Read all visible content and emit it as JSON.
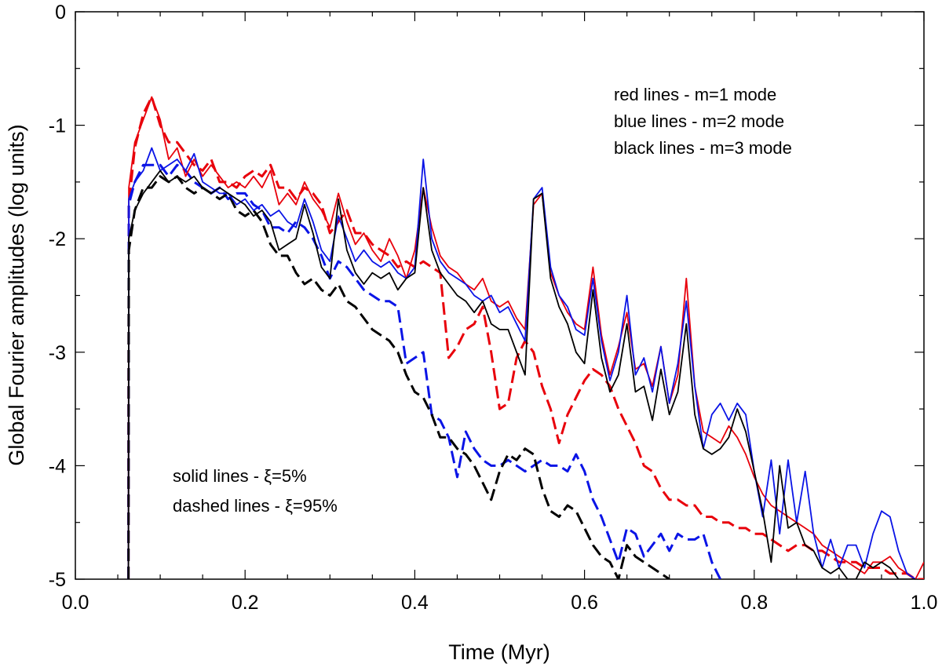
{
  "chart_data": {
    "type": "line",
    "title": "",
    "xlabel": "Time (Myr)",
    "ylabel": "Global Fourier amplitudes (log units)",
    "xlim": [
      0.0,
      1.0
    ],
    "ylim": [
      -5,
      0
    ],
    "xticks": [
      "0.0",
      "0.2",
      "0.4",
      "0.6",
      "0.8",
      "1.0"
    ],
    "yticks": [
      "0",
      "-1",
      "-2",
      "-3",
      "-4",
      "-5"
    ],
    "xtick_values": [
      0.0,
      0.2,
      0.4,
      0.6,
      0.8,
      1.0
    ],
    "ytick_values": [
      0,
      -1,
      -2,
      -3,
      -4,
      -5
    ],
    "grid": false,
    "annotations": {
      "legend_colors": [
        "red lines - m=1 mode",
        "blue lines - m=2 mode",
        "black lines - m=3 mode"
      ],
      "legend_styles": [
        "solid lines - ξ=5%",
        "dashed lines - ξ=95%"
      ]
    },
    "series": [
      {
        "name": "m=1 ξ=5%",
        "color": "#e8000b",
        "dashed": false,
        "x": [
          0.0625,
          0.063,
          0.07,
          0.08,
          0.09,
          0.1,
          0.11,
          0.12,
          0.13,
          0.14,
          0.15,
          0.16,
          0.17,
          0.18,
          0.19,
          0.2,
          0.21,
          0.22,
          0.23,
          0.24,
          0.25,
          0.26,
          0.27,
          0.28,
          0.29,
          0.3,
          0.31,
          0.32,
          0.33,
          0.34,
          0.35,
          0.36,
          0.37,
          0.38,
          0.39,
          0.4,
          0.41,
          0.42,
          0.43,
          0.44,
          0.45,
          0.46,
          0.47,
          0.48,
          0.49,
          0.5,
          0.51,
          0.52,
          0.53,
          0.54,
          0.55,
          0.56,
          0.57,
          0.58,
          0.59,
          0.6,
          0.61,
          0.62,
          0.63,
          0.64,
          0.65,
          0.66,
          0.67,
          0.68,
          0.69,
          0.7,
          0.71,
          0.72,
          0.73,
          0.74,
          0.75,
          0.76,
          0.77,
          0.78,
          0.79,
          0.8,
          0.81,
          0.82,
          0.83,
          0.84,
          0.85,
          0.86,
          0.87,
          0.88,
          0.89,
          0.9,
          0.91,
          0.92,
          0.93,
          0.94,
          0.95,
          0.96,
          0.97,
          0.98,
          0.99,
          1.0
        ],
        "y": [
          -5.0,
          -1.55,
          -1.15,
          -0.95,
          -0.75,
          -0.95,
          -1.3,
          -1.2,
          -1.45,
          -1.3,
          -1.45,
          -1.35,
          -1.45,
          -1.55,
          -1.5,
          -1.55,
          -1.45,
          -1.55,
          -1.4,
          -1.7,
          -1.6,
          -1.7,
          -1.5,
          -1.65,
          -1.75,
          -1.9,
          -1.6,
          -1.85,
          -2.05,
          -1.95,
          -2.1,
          -2.2,
          -2.0,
          -2.15,
          -2.35,
          -2.1,
          -1.55,
          -1.9,
          -2.15,
          -2.25,
          -2.3,
          -2.4,
          -2.45,
          -2.35,
          -2.55,
          -2.6,
          -2.55,
          -2.7,
          -2.8,
          -1.7,
          -1.6,
          -2.3,
          -2.5,
          -2.65,
          -2.75,
          -2.8,
          -2.25,
          -2.85,
          -3.2,
          -2.95,
          -2.65,
          -3.15,
          -3.1,
          -3.3,
          -2.95,
          -3.45,
          -3.2,
          -2.35,
          -3.3,
          -3.7,
          -3.75,
          -3.8,
          -3.65,
          -3.75,
          -3.9,
          -4.1,
          -4.25,
          -4.35,
          -4.4,
          -4.45,
          -4.5,
          -4.55,
          -4.6,
          -4.7,
          -4.75,
          -4.8,
          -4.85,
          -4.9,
          -4.95,
          -4.85,
          -4.85,
          -4.8,
          -4.9,
          -4.95,
          -5.0,
          -4.85
        ]
      },
      {
        "name": "m=2 ξ=5%",
        "color": "#0a14e6",
        "dashed": false,
        "x": [
          0.0625,
          0.063,
          0.07,
          0.08,
          0.09,
          0.1,
          0.11,
          0.12,
          0.13,
          0.14,
          0.15,
          0.16,
          0.17,
          0.18,
          0.19,
          0.2,
          0.21,
          0.22,
          0.23,
          0.24,
          0.25,
          0.26,
          0.27,
          0.28,
          0.29,
          0.3,
          0.31,
          0.32,
          0.33,
          0.34,
          0.35,
          0.36,
          0.37,
          0.38,
          0.39,
          0.4,
          0.41,
          0.42,
          0.43,
          0.44,
          0.45,
          0.46,
          0.47,
          0.48,
          0.49,
          0.5,
          0.51,
          0.52,
          0.53,
          0.54,
          0.55,
          0.56,
          0.57,
          0.58,
          0.59,
          0.6,
          0.61,
          0.62,
          0.63,
          0.64,
          0.65,
          0.66,
          0.67,
          0.68,
          0.69,
          0.7,
          0.71,
          0.72,
          0.73,
          0.74,
          0.75,
          0.76,
          0.77,
          0.78,
          0.79,
          0.8,
          0.81,
          0.82,
          0.83,
          0.84,
          0.85,
          0.86,
          0.87,
          0.88,
          0.89,
          0.9,
          0.91,
          0.92,
          0.93,
          0.94,
          0.95,
          0.96,
          0.97,
          0.98,
          0.99
        ],
        "y": [
          -5.0,
          -1.65,
          -1.5,
          -1.4,
          -1.2,
          -1.4,
          -1.35,
          -1.3,
          -1.4,
          -1.25,
          -1.5,
          -1.55,
          -1.6,
          -1.6,
          -1.7,
          -1.65,
          -1.75,
          -1.7,
          -1.8,
          -1.75,
          -1.85,
          -1.9,
          -1.65,
          -1.85,
          -2.1,
          -2.2,
          -1.8,
          -2.0,
          -2.2,
          -2.1,
          -2.2,
          -2.25,
          -2.2,
          -2.3,
          -2.35,
          -2.25,
          -1.3,
          -2.0,
          -2.2,
          -2.3,
          -2.35,
          -2.4,
          -2.5,
          -2.55,
          -2.5,
          -2.65,
          -2.6,
          -2.75,
          -2.9,
          -1.65,
          -1.55,
          -2.25,
          -2.5,
          -2.6,
          -2.8,
          -2.85,
          -2.35,
          -2.9,
          -3.25,
          -3.0,
          -2.5,
          -3.2,
          -3.05,
          -3.35,
          -2.95,
          -3.45,
          -3.1,
          -2.55,
          -3.3,
          -3.85,
          -3.55,
          -3.45,
          -3.6,
          -3.45,
          -3.55,
          -4.05,
          -4.45,
          -3.95,
          -4.6,
          -3.95,
          -4.5,
          -4.05,
          -4.6,
          -4.9,
          -4.65,
          -4.9,
          -4.7,
          -4.7,
          -4.9,
          -4.6,
          -4.4,
          -4.45,
          -4.75,
          -4.95,
          -5.0
        ]
      },
      {
        "name": "m=3 ξ=5%",
        "color": "#000000",
        "dashed": false,
        "x": [
          0.0625,
          0.063,
          0.07,
          0.08,
          0.09,
          0.1,
          0.11,
          0.12,
          0.13,
          0.14,
          0.15,
          0.16,
          0.17,
          0.18,
          0.19,
          0.2,
          0.21,
          0.22,
          0.23,
          0.24,
          0.25,
          0.26,
          0.27,
          0.28,
          0.29,
          0.3,
          0.31,
          0.32,
          0.33,
          0.34,
          0.35,
          0.36,
          0.37,
          0.38,
          0.39,
          0.4,
          0.41,
          0.42,
          0.43,
          0.44,
          0.45,
          0.46,
          0.47,
          0.48,
          0.49,
          0.5,
          0.51,
          0.52,
          0.53,
          0.54,
          0.55,
          0.56,
          0.57,
          0.58,
          0.59,
          0.6,
          0.61,
          0.62,
          0.63,
          0.64,
          0.65,
          0.66,
          0.67,
          0.68,
          0.69,
          0.7,
          0.71,
          0.72,
          0.73,
          0.74,
          0.75,
          0.76,
          0.77,
          0.78,
          0.79,
          0.8,
          0.81,
          0.82,
          0.83,
          0.84,
          0.85,
          0.86,
          0.87,
          0.88,
          0.89,
          0.9,
          0.91,
          0.92,
          0.93,
          0.94,
          0.95,
          0.96,
          0.97,
          0.98,
          0.99
        ],
        "y": [
          -5.0,
          -2.0,
          -1.75,
          -1.6,
          -1.5,
          -1.4,
          -1.5,
          -1.45,
          -1.5,
          -1.45,
          -1.55,
          -1.6,
          -1.55,
          -1.6,
          -1.65,
          -1.7,
          -1.8,
          -1.75,
          -1.85,
          -2.1,
          -2.05,
          -2.0,
          -1.7,
          -1.95,
          -2.25,
          -2.35,
          -1.65,
          -2.1,
          -2.3,
          -2.4,
          -2.3,
          -2.35,
          -2.3,
          -2.45,
          -2.35,
          -2.3,
          -1.55,
          -2.1,
          -2.3,
          -2.4,
          -2.5,
          -2.55,
          -2.65,
          -2.55,
          -2.75,
          -2.8,
          -2.8,
          -3.0,
          -3.2,
          -1.65,
          -1.6,
          -2.35,
          -2.6,
          -2.75,
          -3.0,
          -3.1,
          -2.45,
          -3.05,
          -3.35,
          -3.2,
          -2.75,
          -3.35,
          -3.3,
          -3.6,
          -3.15,
          -3.55,
          -3.35,
          -2.75,
          -3.55,
          -3.85,
          -3.9,
          -3.85,
          -3.75,
          -3.5,
          -3.7,
          -4.05,
          -4.4,
          -4.85,
          -4.0,
          -4.55,
          -4.5,
          -4.7,
          -4.75,
          -4.9,
          -4.95,
          -4.9,
          -5.0,
          -5.0,
          -4.85,
          -4.9,
          -4.85,
          -4.9,
          -5.0,
          -5.0,
          -5.0
        ]
      },
      {
        "name": "m=1 ξ=95%",
        "color": "#e8000b",
        "dashed": true,
        "x": [
          0.0625,
          0.063,
          0.07,
          0.08,
          0.09,
          0.1,
          0.11,
          0.12,
          0.13,
          0.14,
          0.15,
          0.16,
          0.17,
          0.18,
          0.19,
          0.2,
          0.21,
          0.22,
          0.23,
          0.24,
          0.25,
          0.26,
          0.27,
          0.28,
          0.29,
          0.3,
          0.31,
          0.32,
          0.33,
          0.34,
          0.35,
          0.36,
          0.37,
          0.38,
          0.39,
          0.4,
          0.41,
          0.42,
          0.43,
          0.44,
          0.45,
          0.46,
          0.47,
          0.48,
          0.49,
          0.5,
          0.51,
          0.52,
          0.53,
          0.54,
          0.55,
          0.56,
          0.57,
          0.58,
          0.59,
          0.6,
          0.61,
          0.62,
          0.63,
          0.64,
          0.65,
          0.66,
          0.67,
          0.68,
          0.69,
          0.7,
          0.71,
          0.72,
          0.73,
          0.74,
          0.75,
          0.76,
          0.77,
          0.78,
          0.79,
          0.8,
          0.81,
          0.82,
          0.83,
          0.84,
          0.85,
          0.86,
          0.87,
          0.88,
          0.89,
          0.9,
          0.91,
          0.92,
          0.93,
          0.94,
          0.95,
          0.96,
          0.97,
          0.98,
          0.99,
          1.0
        ],
        "y": [
          -5.0,
          -1.7,
          -1.2,
          -0.9,
          -0.75,
          -1.0,
          -1.15,
          -1.15,
          -1.25,
          -1.35,
          -1.4,
          -1.3,
          -1.5,
          -1.5,
          -1.55,
          -1.45,
          -1.4,
          -1.45,
          -1.35,
          -1.55,
          -1.55,
          -1.65,
          -1.55,
          -1.6,
          -1.7,
          -1.95,
          -1.85,
          -1.75,
          -1.95,
          -1.95,
          -2.05,
          -2.1,
          -2.15,
          -2.25,
          -2.2,
          -2.25,
          -2.2,
          -2.25,
          -2.3,
          -3.05,
          -2.95,
          -2.8,
          -2.75,
          -2.6,
          -3.0,
          -3.5,
          -3.45,
          -3.05,
          -2.9,
          -3.0,
          -3.3,
          -3.5,
          -3.8,
          -3.55,
          -3.4,
          -3.25,
          -3.15,
          -3.2,
          -3.3,
          -3.5,
          -3.65,
          -3.8,
          -4.0,
          -4.05,
          -4.2,
          -4.3,
          -4.3,
          -4.35,
          -4.35,
          -4.45,
          -4.45,
          -4.5,
          -4.5,
          -4.55,
          -4.55,
          -4.6,
          -4.6,
          -4.65,
          -4.7,
          -4.75,
          -4.7,
          -4.7,
          -4.75,
          -4.75,
          -4.8,
          -4.85,
          -4.85,
          -4.85,
          -4.9,
          -4.9,
          -4.9,
          -4.95,
          -4.95,
          -4.95,
          -5.0,
          -5.0
        ]
      },
      {
        "name": "m=2 ξ=95%",
        "color": "#0a14e6",
        "dashed": true,
        "x": [
          0.0625,
          0.063,
          0.07,
          0.08,
          0.09,
          0.1,
          0.11,
          0.12,
          0.13,
          0.14,
          0.15,
          0.16,
          0.17,
          0.18,
          0.19,
          0.2,
          0.21,
          0.22,
          0.23,
          0.24,
          0.25,
          0.26,
          0.27,
          0.28,
          0.29,
          0.3,
          0.31,
          0.32,
          0.33,
          0.34,
          0.35,
          0.36,
          0.37,
          0.38,
          0.39,
          0.4,
          0.41,
          0.42,
          0.43,
          0.44,
          0.45,
          0.46,
          0.47,
          0.48,
          0.49,
          0.5,
          0.51,
          0.52,
          0.53,
          0.54,
          0.55,
          0.56,
          0.57,
          0.58,
          0.59,
          0.6,
          0.61,
          0.62,
          0.63,
          0.64,
          0.65,
          0.66,
          0.67,
          0.68,
          0.69,
          0.7,
          0.71,
          0.72,
          0.73,
          0.74,
          0.75,
          0.76
        ],
        "y": [
          -5.0,
          -1.7,
          -1.5,
          -1.35,
          -1.35,
          -1.35,
          -1.45,
          -1.35,
          -1.4,
          -1.5,
          -1.55,
          -1.6,
          -1.55,
          -1.65,
          -1.6,
          -1.6,
          -1.7,
          -1.75,
          -1.9,
          -1.9,
          -1.95,
          -1.85,
          -1.9,
          -2.0,
          -2.15,
          -2.35,
          -2.2,
          -2.25,
          -2.35,
          -2.45,
          -2.5,
          -2.55,
          -2.55,
          -2.6,
          -3.1,
          -3.05,
          -3.0,
          -3.55,
          -3.6,
          -3.75,
          -4.1,
          -3.7,
          -3.85,
          -3.95,
          -4.0,
          -4.0,
          -3.95,
          -4.0,
          -4.05,
          -4.0,
          -3.95,
          -4.0,
          -4.0,
          -4.05,
          -3.9,
          -4.05,
          -4.3,
          -4.45,
          -4.65,
          -4.85,
          -4.55,
          -4.6,
          -4.8,
          -4.7,
          -4.6,
          -4.75,
          -4.6,
          -4.65,
          -4.65,
          -4.6,
          -4.85,
          -5.0
        ]
      },
      {
        "name": "m=3 ξ=95%",
        "color": "#000000",
        "dashed": true,
        "x": [
          0.0625,
          0.063,
          0.07,
          0.08,
          0.09,
          0.1,
          0.11,
          0.12,
          0.13,
          0.14,
          0.15,
          0.16,
          0.17,
          0.18,
          0.19,
          0.2,
          0.21,
          0.22,
          0.23,
          0.24,
          0.25,
          0.26,
          0.27,
          0.28,
          0.29,
          0.3,
          0.31,
          0.32,
          0.33,
          0.34,
          0.35,
          0.36,
          0.37,
          0.38,
          0.39,
          0.4,
          0.41,
          0.42,
          0.43,
          0.44,
          0.45,
          0.46,
          0.47,
          0.48,
          0.49,
          0.5,
          0.51,
          0.52,
          0.53,
          0.54,
          0.55,
          0.56,
          0.57,
          0.58,
          0.59,
          0.6,
          0.61,
          0.62,
          0.63,
          0.64,
          0.65,
          0.66,
          0.67,
          0.68,
          0.69,
          0.7
        ],
        "y": [
          -5.0,
          -2.1,
          -1.75,
          -1.55,
          -1.55,
          -1.45,
          -1.5,
          -1.45,
          -1.55,
          -1.6,
          -1.55,
          -1.6,
          -1.65,
          -1.6,
          -1.75,
          -1.8,
          -1.75,
          -1.85,
          -2.05,
          -2.15,
          -2.15,
          -2.3,
          -2.4,
          -2.35,
          -2.45,
          -2.5,
          -2.4,
          -2.55,
          -2.6,
          -2.7,
          -2.8,
          -2.85,
          -2.9,
          -3.0,
          -3.2,
          -3.35,
          -3.4,
          -3.55,
          -3.75,
          -3.75,
          -3.85,
          -3.9,
          -4.0,
          -4.15,
          -4.3,
          -4.05,
          -3.9,
          -3.95,
          -3.85,
          -3.9,
          -4.2,
          -4.4,
          -4.45,
          -4.35,
          -4.4,
          -4.55,
          -4.7,
          -4.8,
          -4.85,
          -5.0,
          -4.7,
          -4.8,
          -4.85,
          -4.9,
          -4.95,
          -5.0
        ]
      }
    ]
  }
}
